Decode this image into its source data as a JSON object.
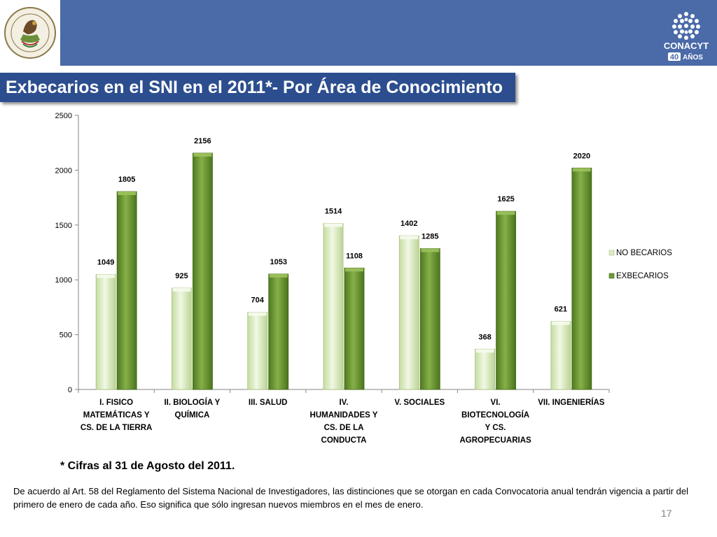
{
  "logo": {
    "name": "CONACYT",
    "anniversary": "40",
    "anniversary_word": "AÑOS",
    "seal_text": "ESTADOS UNIDOS MEXICANOS"
  },
  "title": "Exbecarios en el SNI  en el 2011*- Por  Área de Conocimiento",
  "chart_data": {
    "type": "bar",
    "categories": [
      [
        "I. FISICO",
        "MATEMÁTICAS Y",
        "CS. DE LA TIERRA"
      ],
      [
        "II. BIOLOGÍA Y",
        "QUÍMICA"
      ],
      [
        "III. SALUD"
      ],
      [
        "IV.",
        "HUMANIDADES Y",
        "CS. DE LA",
        "CONDUCTA"
      ],
      [
        "V. SOCIALES"
      ],
      [
        "VI.",
        "BIOTECNOLOGÍA",
        "Y CS.",
        "AGROPECUARIAS"
      ],
      [
        "VII. INGENIERÍAS"
      ]
    ],
    "series": [
      {
        "name": "NO BECARIOS",
        "values": [
          1049,
          925,
          704,
          1514,
          1402,
          368,
          621
        ],
        "color": "#dcecc2"
      },
      {
        "name": "EXBECARIOS",
        "values": [
          1805,
          2156,
          1053,
          1108,
          1285,
          1625,
          2020
        ],
        "color": "#6e9a34"
      }
    ],
    "ylim": [
      0,
      2500
    ],
    "yticks": [
      0,
      500,
      1000,
      1500,
      2000,
      2500
    ],
    "legend": "right",
    "grid": false
  },
  "footnote": "* Cifras al 31 de Agosto del 2011.",
  "note": "De acuerdo al Art. 58 del Reglamento del Sistema Nacional de Investigadores, las distinciones que se otorgan en cada Convocatoria anual tendrán vigencia a partir del primero de enero de cada año. Eso significa que sólo ingresan nuevos miembros en el mes de enero.",
  "page_number": "17"
}
